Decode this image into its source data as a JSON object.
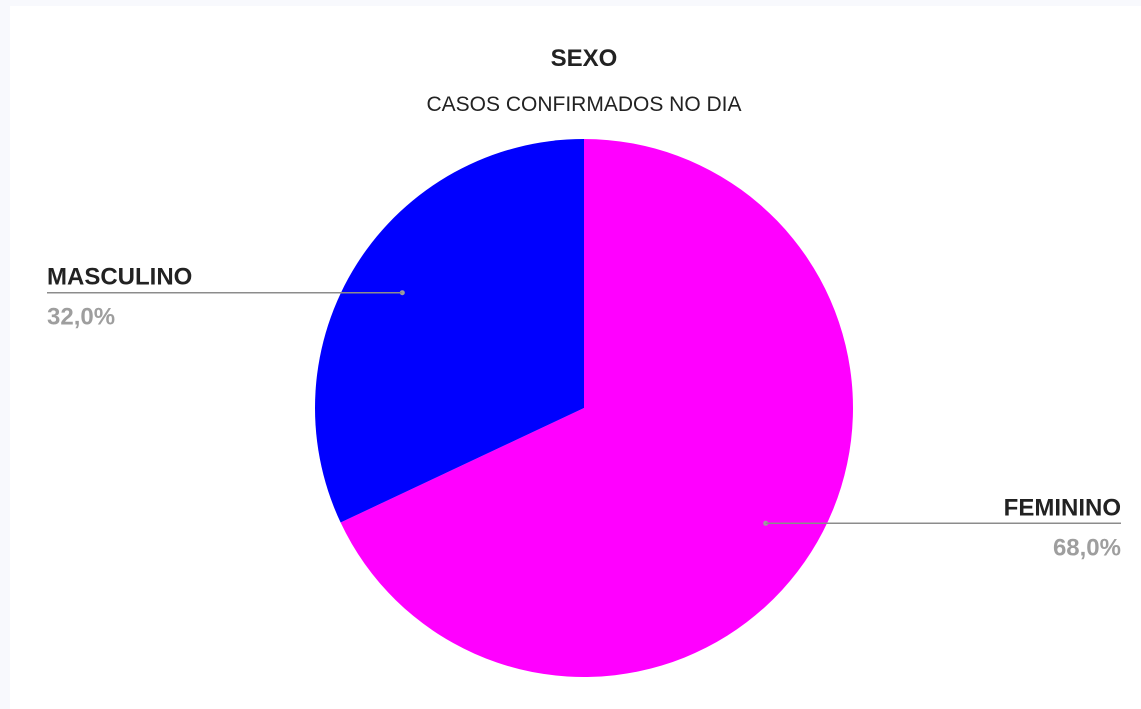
{
  "chart_data": {
    "type": "pie",
    "title": "SEXO",
    "subtitle": "CASOS CONFIRMADOS NO DIA",
    "slices": [
      {
        "label": "FEMININO",
        "value": 68.0,
        "display": "68,0%",
        "color": "#ff00ff"
      },
      {
        "label": "MASCULINO",
        "value": 32.0,
        "display": "32,0%",
        "color": "#0000ff"
      }
    ],
    "start_angle": "12 o'clock",
    "direction": "clockwise",
    "legend": "none",
    "label_style": "outside labels with leader lines"
  }
}
